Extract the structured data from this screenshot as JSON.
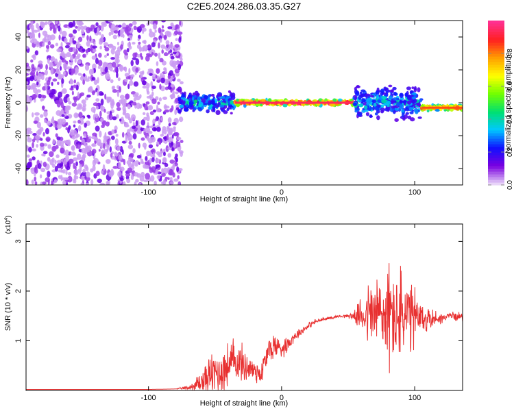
{
  "figure_title": "C2E5.2024.286.03.35.G27",
  "chart_data": [
    {
      "type": "heatmap",
      "panel": "spectrogram",
      "title": "C2E5.2024.286.03.35.G27",
      "xlabel": "Height of straight line (km)",
      "ylabel": "Frequency (Hz)",
      "xlim": [
        -192,
        136
      ],
      "ylim": [
        -50,
        50
      ],
      "xticks": [
        -100,
        0,
        100
      ],
      "yticks": [
        -40,
        -20,
        0,
        20,
        40
      ],
      "colorbar": {
        "label": "Normalized spectral amplitude",
        "range": [
          0,
          1
        ],
        "ticks": [
          "0.0",
          "0.2",
          "0.4",
          "0.6",
          "0.8"
        ],
        "colormap": [
          "#e8d4f8",
          "#7a00e0",
          "#1010ff",
          "#00c8ff",
          "#00e070",
          "#70ff00",
          "#ffff00",
          "#ffa000",
          "#ff2020",
          "#ff3090"
        ]
      },
      "features": [
        {
          "region": "noise",
          "x_range": [
            -192,
            -77
          ],
          "freq_range": [
            -50,
            50
          ],
          "amplitude": 0.05
        },
        {
          "region": "signal-turbulent",
          "x_range": [
            -77,
            -35
          ],
          "center_freq": 0,
          "spread_hz": 6,
          "amplitude": 0.35
        },
        {
          "region": "signal-stable",
          "x_range": [
            -35,
            55
          ],
          "center_freq": 0,
          "spread_hz": 2,
          "amplitude": 0.95
        },
        {
          "region": "signal-turbulent",
          "x_range": [
            55,
            105
          ],
          "center_freq": 0,
          "spread_hz": 10,
          "amplitude": 0.4
        },
        {
          "region": "signal-stable",
          "x_range": [
            105,
            136
          ],
          "center_freq": -3,
          "spread_hz": 2,
          "amplitude": 0.85
        }
      ]
    },
    {
      "type": "line",
      "panel": "snr",
      "xlabel": "Height of straight line (km)",
      "ylabel": "SNR (10 * v/v)",
      "y_multiplier": "(x10",
      "y_multiplier_exp": "4",
      "xlim": [
        -192,
        136
      ],
      "ylim": [
        0,
        3.35
      ],
      "xticks": [
        -100,
        0,
        100
      ],
      "yticks": [
        1,
        2,
        3
      ],
      "color": "#e83030",
      "series": [
        {
          "x": [
            -192,
            -150,
            -100,
            -80,
            -70,
            -65,
            -60,
            -55,
            -50,
            -45,
            -40,
            -35,
            -30,
            -25,
            -20,
            -15,
            -10,
            -5,
            0,
            5,
            10,
            15,
            20,
            25,
            30,
            35,
            40,
            45,
            50,
            55,
            60,
            65,
            70,
            75,
            80,
            85,
            90,
            95,
            100,
            105,
            110,
            115,
            120,
            125,
            130,
            136
          ],
          "y": [
            0.02,
            0.02,
            0.02,
            0.03,
            0.05,
            0.1,
            0.18,
            0.28,
            0.35,
            0.4,
            0.5,
            0.6,
            0.55,
            0.45,
            0.4,
            0.35,
            0.8,
            0.9,
            0.85,
            0.95,
            1.1,
            1.2,
            1.3,
            1.38,
            1.42,
            1.45,
            1.48,
            1.5,
            1.5,
            1.5,
            1.52,
            1.55,
            1.55,
            1.55,
            1.5,
            1.5,
            1.5,
            1.45,
            1.45,
            1.4,
            1.45,
            1.45,
            1.45,
            1.5,
            1.5,
            1.48
          ],
          "noise_amplitude": [
            0,
            0,
            0,
            0,
            0.05,
            0.15,
            0.25,
            0.35,
            0.45,
            0.45,
            0.45,
            0.45,
            0.35,
            0.3,
            0.25,
            0.25,
            0.3,
            0.25,
            0.2,
            0.15,
            0.1,
            0.08,
            0.06,
            0.05,
            0.04,
            0.03,
            0.03,
            0.03,
            0.04,
            0.1,
            0.35,
            0.6,
            0.8,
            0.9,
            1.0,
            1.0,
            0.9,
            0.8,
            0.6,
            0.4,
            0.25,
            0.15,
            0.1,
            0.08,
            0.08,
            0.08
          ]
        }
      ]
    }
  ]
}
